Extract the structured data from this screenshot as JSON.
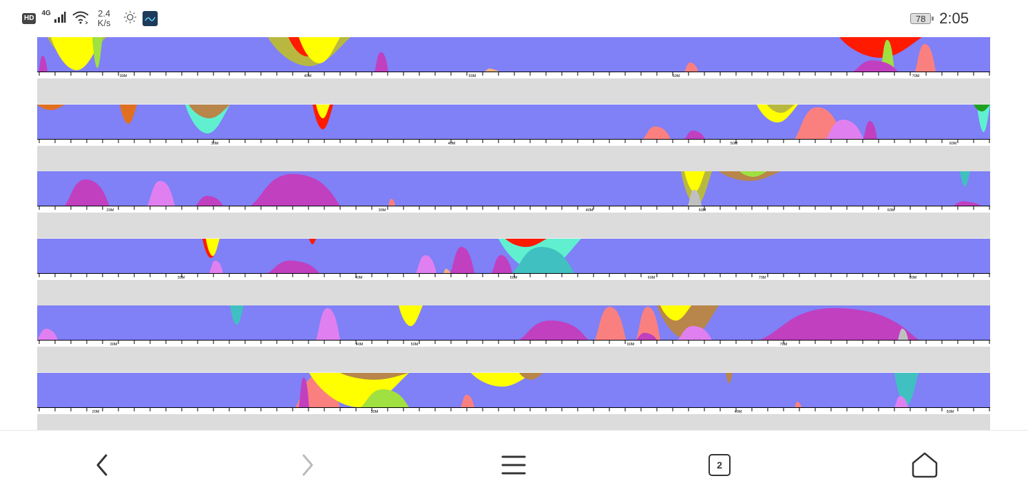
{
  "status_bar": {
    "hd_badge": "HD",
    "network": "4G",
    "speed_value": "2.4",
    "speed_unit": "K/s",
    "icons": [
      "hd-icon",
      "signal-icon",
      "wifi-icon",
      "brightness-icon",
      "app-icon"
    ],
    "battery_level": "78",
    "time": "2:05"
  },
  "colors": {
    "background": "#8080f7",
    "gap": "#dcdcdc",
    "ruler": "#ffffff",
    "red": "#ff1a00",
    "yellow": "#ffff00",
    "olive": "#b8b840",
    "orange": "#e07020",
    "brown": "#b8864a",
    "magenta": "#c040c0",
    "violet": "#e080f0",
    "salmon": "#fa8080",
    "teal": "#40c0c0",
    "aqua": "#60f0d0",
    "lime": "#a0e040",
    "green": "#20a020",
    "peach": "#f0b080",
    "gray": "#c0c0c0"
  },
  "chart_data": [
    {
      "type": "area",
      "row": 1,
      "tick_labels": [
        "30M",
        "40M",
        "50M",
        "60M",
        "70M"
      ]
    },
    {
      "type": "area",
      "row": 2,
      "tick_labels": [
        "30M",
        "40M",
        "50M",
        "60M"
      ]
    },
    {
      "type": "area",
      "row": 3,
      "tick_labels": [
        "20M",
        "30M",
        "40M",
        "50M",
        "60M"
      ]
    },
    {
      "type": "area",
      "row": 4,
      "tick_labels": [
        "30M",
        "40M",
        "50M",
        "60M",
        "70M",
        "80M"
      ]
    },
    {
      "type": "area",
      "row": 5,
      "tick_labels": [
        "30M",
        "40M",
        "50M",
        "60M",
        "70M"
      ]
    },
    {
      "type": "area",
      "row": 6,
      "tick_labels": [
        "20M",
        "30M",
        "40M",
        "50M"
      ]
    }
  ],
  "nav": {
    "back": "back-icon",
    "forward": "forward-icon",
    "menu": "menu-icon",
    "tabs_count": "2",
    "home": "home-icon"
  }
}
